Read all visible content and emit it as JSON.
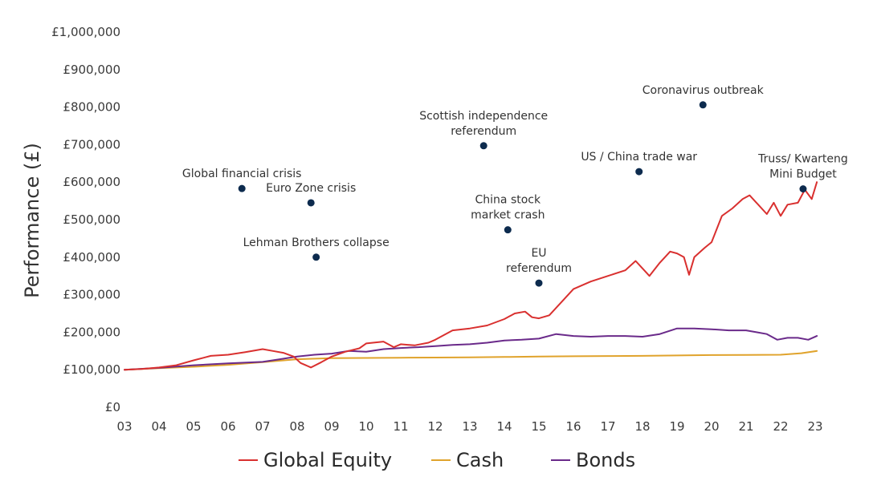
{
  "chart_data": {
    "type": "line",
    "title": "",
    "ylabel": "Performance (£)",
    "xlabel": "",
    "xlim": [
      2003,
      2023.1
    ],
    "ylim": [
      0,
      1000000
    ],
    "x_ticks": [
      "03",
      "04",
      "05",
      "06",
      "07",
      "08",
      "09",
      "10",
      "11",
      "12",
      "13",
      "14",
      "15",
      "16",
      "17",
      "18",
      "19",
      "20",
      "21",
      "22",
      "23"
    ],
    "y_ticks": [
      "£0",
      "£100,000",
      "£200,000",
      "£300,000",
      "£400,000",
      "£500,000",
      "£600,000",
      "£700,000",
      "£800,000",
      "£900,000",
      "£1,000,000"
    ],
    "grid": false,
    "legend_position": "bottom-center",
    "series": [
      {
        "name": "Global Equity",
        "color": "#d9302f",
        "points": [
          [
            2003.0,
            100000
          ],
          [
            2003.5,
            102000
          ],
          [
            2004.0,
            106000
          ],
          [
            2004.5,
            112000
          ],
          [
            2005.0,
            125000
          ],
          [
            2005.5,
            137000
          ],
          [
            2006.0,
            140000
          ],
          [
            2006.5,
            147000
          ],
          [
            2007.0,
            155000
          ],
          [
            2007.3,
            150000
          ],
          [
            2007.6,
            145000
          ],
          [
            2007.9,
            135000
          ],
          [
            2008.1,
            118000
          ],
          [
            2008.4,
            106000
          ],
          [
            2008.7,
            120000
          ],
          [
            2009.0,
            135000
          ],
          [
            2009.4,
            148000
          ],
          [
            2009.8,
            157000
          ],
          [
            2010.0,
            170000
          ],
          [
            2010.5,
            175000
          ],
          [
            2010.8,
            160000
          ],
          [
            2011.0,
            168000
          ],
          [
            2011.4,
            165000
          ],
          [
            2011.8,
            172000
          ],
          [
            2012.0,
            180000
          ],
          [
            2012.5,
            205000
          ],
          [
            2013.0,
            210000
          ],
          [
            2013.5,
            218000
          ],
          [
            2014.0,
            235000
          ],
          [
            2014.3,
            250000
          ],
          [
            2014.6,
            255000
          ],
          [
            2014.8,
            240000
          ],
          [
            2015.0,
            237000
          ],
          [
            2015.3,
            245000
          ],
          [
            2015.6,
            275000
          ],
          [
            2016.0,
            315000
          ],
          [
            2016.5,
            335000
          ],
          [
            2017.0,
            350000
          ],
          [
            2017.5,
            365000
          ],
          [
            2017.8,
            390000
          ],
          [
            2018.0,
            370000
          ],
          [
            2018.2,
            350000
          ],
          [
            2018.5,
            385000
          ],
          [
            2018.8,
            415000
          ],
          [
            2019.0,
            410000
          ],
          [
            2019.2,
            400000
          ],
          [
            2019.35,
            353000
          ],
          [
            2019.5,
            400000
          ],
          [
            2019.8,
            425000
          ],
          [
            2020.0,
            440000
          ],
          [
            2020.3,
            510000
          ],
          [
            2020.6,
            530000
          ],
          [
            2020.9,
            555000
          ],
          [
            2021.1,
            565000
          ],
          [
            2021.3,
            545000
          ],
          [
            2021.6,
            515000
          ],
          [
            2021.8,
            545000
          ],
          [
            2022.0,
            510000
          ],
          [
            2022.2,
            540000
          ],
          [
            2022.5,
            545000
          ],
          [
            2022.7,
            580000
          ],
          [
            2022.9,
            555000
          ],
          [
            2023.05,
            600000
          ]
        ]
      },
      {
        "name": "Cash",
        "color": "#e0a32c",
        "points": [
          [
            2003.0,
            100000
          ],
          [
            2004.0,
            104000
          ],
          [
            2005.0,
            108000
          ],
          [
            2006.0,
            113000
          ],
          [
            2007.0,
            120000
          ],
          [
            2008.0,
            128000
          ],
          [
            2009.0,
            131000
          ],
          [
            2010.0,
            131500
          ],
          [
            2011.0,
            132000
          ],
          [
            2012.0,
            132500
          ],
          [
            2013.0,
            133000
          ],
          [
            2014.0,
            134000
          ],
          [
            2015.0,
            135000
          ],
          [
            2016.0,
            136000
          ],
          [
            2017.0,
            136500
          ],
          [
            2018.0,
            137000
          ],
          [
            2019.0,
            138000
          ],
          [
            2020.0,
            139000
          ],
          [
            2021.0,
            139500
          ],
          [
            2022.0,
            140000
          ],
          [
            2022.6,
            144000
          ],
          [
            2023.05,
            150000
          ]
        ]
      },
      {
        "name": "Bonds",
        "color": "#6a2a8a",
        "points": [
          [
            2003.0,
            100000
          ],
          [
            2004.0,
            105000
          ],
          [
            2005.0,
            112000
          ],
          [
            2006.0,
            117000
          ],
          [
            2007.0,
            121000
          ],
          [
            2007.5,
            128000
          ],
          [
            2008.0,
            135000
          ],
          [
            2008.5,
            140000
          ],
          [
            2009.0,
            143000
          ],
          [
            2009.5,
            150000
          ],
          [
            2010.0,
            148000
          ],
          [
            2010.5,
            155000
          ],
          [
            2011.0,
            158000
          ],
          [
            2011.5,
            160000
          ],
          [
            2012.0,
            163000
          ],
          [
            2012.5,
            166000
          ],
          [
            2013.0,
            168000
          ],
          [
            2013.5,
            172000
          ],
          [
            2014.0,
            178000
          ],
          [
            2014.5,
            180000
          ],
          [
            2015.0,
            183000
          ],
          [
            2015.5,
            195000
          ],
          [
            2016.0,
            190000
          ],
          [
            2016.5,
            188000
          ],
          [
            2017.0,
            190000
          ],
          [
            2017.5,
            190000
          ],
          [
            2018.0,
            188000
          ],
          [
            2018.5,
            195000
          ],
          [
            2019.0,
            210000
          ],
          [
            2019.5,
            210000
          ],
          [
            2020.0,
            208000
          ],
          [
            2020.5,
            205000
          ],
          [
            2021.0,
            205000
          ],
          [
            2021.3,
            200000
          ],
          [
            2021.6,
            195000
          ],
          [
            2021.9,
            180000
          ],
          [
            2022.2,
            185000
          ],
          [
            2022.5,
            185000
          ],
          [
            2022.8,
            180000
          ],
          [
            2023.05,
            190000
          ]
        ]
      }
    ],
    "annotations": [
      {
        "lines": [
          "Global financial crisis"
        ],
        "x": 2006.4,
        "y": 583000
      },
      {
        "lines": [
          "Euro Zone crisis"
        ],
        "x": 2008.4,
        "y": 545000
      },
      {
        "lines": [
          "Lehman Brothers collapse"
        ],
        "x": 2008.55,
        "y": 400000
      },
      {
        "lines": [
          "Scottish  independence",
          "referendum"
        ],
        "x": 2013.4,
        "y": 697000
      },
      {
        "lines": [
          "China stock",
          "market crash"
        ],
        "x": 2014.1,
        "y": 473000
      },
      {
        "lines": [
          "EU",
          "referendum"
        ],
        "x": 2015.0,
        "y": 331000
      },
      {
        "lines": [
          "US / China trade war"
        ],
        "x": 2017.9,
        "y": 628000
      },
      {
        "lines": [
          "Coronavirus outbreak"
        ],
        "x": 2019.75,
        "y": 806000
      },
      {
        "lines": [
          "Truss/ Kwarteng",
          "Mini Budget"
        ],
        "x": 2022.65,
        "y": 582000
      }
    ]
  }
}
